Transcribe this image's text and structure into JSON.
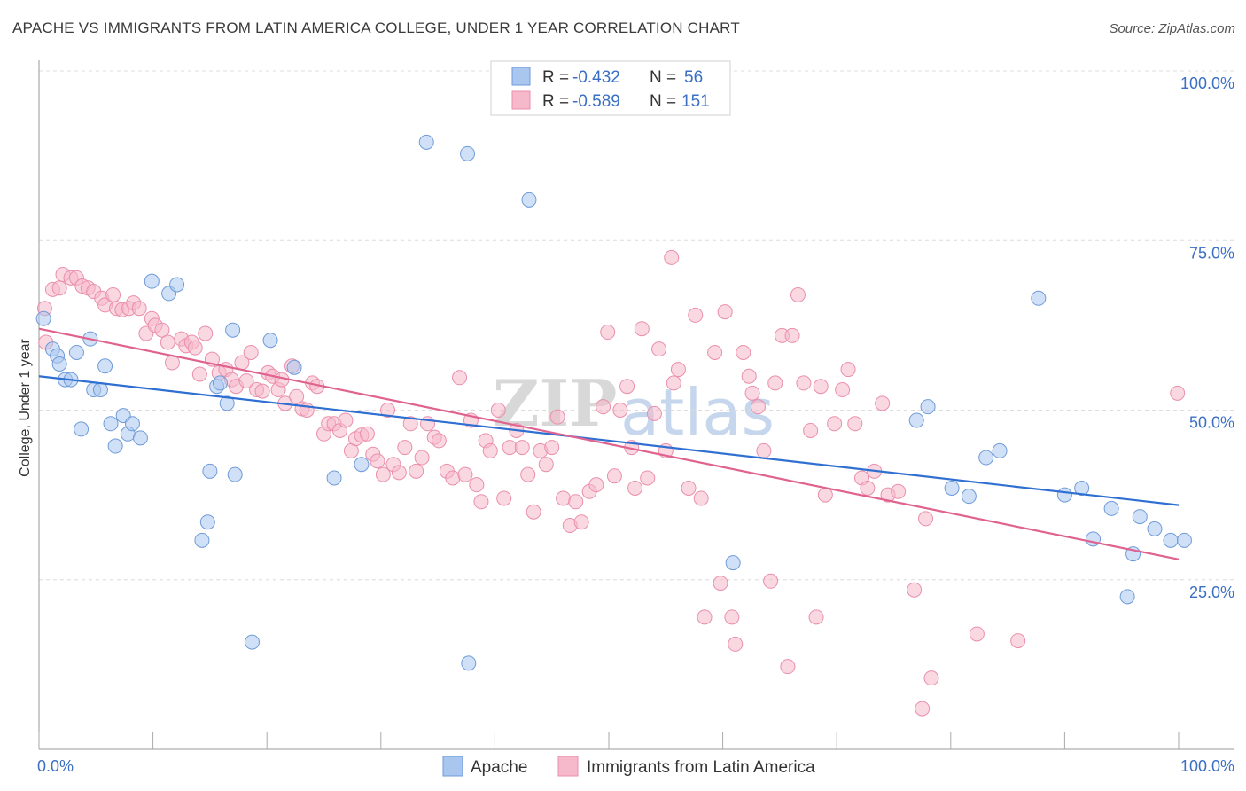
{
  "title": "APACHE VS IMMIGRANTS FROM LATIN AMERICA COLLEGE, UNDER 1 YEAR CORRELATION CHART",
  "source": "Source: ZipAtlas.com",
  "watermark": {
    "zip": "ZIP",
    "atlas": "atlas"
  },
  "legend": {
    "apache": {
      "r_label": "R =",
      "r_value": "-0.432",
      "n_label": "N =",
      "n_value": "56"
    },
    "latin": {
      "r_label": "R =",
      "r_value": "-0.589",
      "n_label": "N =",
      "n_value": "151"
    }
  },
  "bottom_legend": {
    "apache": "Apache",
    "latin": "Immigrants from Latin America"
  },
  "colors": {
    "apache_fill": "#a9c6ee",
    "apache_stroke": "#6f9bd8",
    "apache_line": "#2e6fd1",
    "latin_fill": "#f6b8cb",
    "latin_stroke": "#ea8fac",
    "latin_line": "#e0628f",
    "axis_text": "#3a6fc4"
  },
  "chart_data": {
    "type": "scatter",
    "title": "APACHE VS IMMIGRANTS FROM LATIN AMERICA COLLEGE, UNDER 1 YEAR CORRELATION CHART",
    "xlabel": "",
    "ylabel": "College, Under 1 year",
    "xlim": [
      0,
      100
    ],
    "ylim": [
      0,
      100
    ],
    "x_tick_labels": [
      "0.0%",
      "100.0%"
    ],
    "y_ticks": [
      25,
      50,
      75,
      100
    ],
    "y_tick_labels": [
      "25.0%",
      "50.0%",
      "75.0%",
      "100.0%"
    ],
    "series": [
      {
        "name": "Apache",
        "trend": {
          "x0": 0,
          "y0": 55.0,
          "x1": 100,
          "y1": 36.0
        },
        "points": [
          [
            0.4,
            63.5
          ],
          [
            1.2,
            59
          ],
          [
            1.6,
            58
          ],
          [
            1.8,
            56.8
          ],
          [
            2.3,
            54.5
          ],
          [
            2.8,
            54.5
          ],
          [
            3.3,
            58.5
          ],
          [
            3.7,
            47.2
          ],
          [
            4.5,
            60.5
          ],
          [
            4.8,
            53
          ],
          [
            5.4,
            53
          ],
          [
            5.8,
            56.5
          ],
          [
            6.3,
            48
          ],
          [
            6.7,
            44.7
          ],
          [
            7.4,
            49.2
          ],
          [
            7.8,
            46.5
          ],
          [
            8.2,
            48
          ],
          [
            8.9,
            45.9
          ],
          [
            9.9,
            69
          ],
          [
            11.4,
            67.2
          ],
          [
            12.1,
            68.5
          ],
          [
            14.8,
            33.5
          ],
          [
            14.3,
            30.8
          ],
          [
            15.0,
            41
          ],
          [
            15.6,
            53.5
          ],
          [
            15.9,
            54
          ],
          [
            16.5,
            51
          ],
          [
            17.0,
            61.8
          ],
          [
            17.2,
            40.5
          ],
          [
            18.7,
            15.8
          ],
          [
            20.3,
            60.3
          ],
          [
            22.4,
            56.3
          ],
          [
            25.9,
            40
          ],
          [
            28.3,
            42
          ],
          [
            34.0,
            89.5
          ],
          [
            37.6,
            87.8
          ],
          [
            37.7,
            12.7
          ],
          [
            43.0,
            81
          ],
          [
            60.9,
            27.5
          ],
          [
            77.0,
            48.5
          ],
          [
            78.0,
            50.5
          ],
          [
            80.1,
            38.5
          ],
          [
            81.6,
            37.3
          ],
          [
            83.1,
            43
          ],
          [
            84.3,
            44
          ],
          [
            87.7,
            66.5
          ],
          [
            90.0,
            37.5
          ],
          [
            91.5,
            38.5
          ],
          [
            92.5,
            31
          ],
          [
            94.1,
            35.5
          ],
          [
            95.5,
            22.5
          ],
          [
            96.0,
            28.8
          ],
          [
            96.6,
            34.3
          ],
          [
            97.9,
            32.5
          ],
          [
            100.5,
            30.8
          ],
          [
            99.3,
            30.8
          ]
        ]
      },
      {
        "name": "Immigrants from Latin America",
        "trend": {
          "x0": 0,
          "y0": 62.0,
          "x1": 100,
          "y1": 28.0
        },
        "points": [
          [
            0.5,
            65
          ],
          [
            0.6,
            60
          ],
          [
            1.2,
            67.8
          ],
          [
            1.8,
            68
          ],
          [
            2.1,
            70
          ],
          [
            2.8,
            69.5
          ],
          [
            3.3,
            69.5
          ],
          [
            3.8,
            68.3
          ],
          [
            4.3,
            68
          ],
          [
            4.8,
            67.5
          ],
          [
            5.5,
            66.5
          ],
          [
            5.8,
            65.5
          ],
          [
            6.5,
            67
          ],
          [
            6.8,
            65
          ],
          [
            7.3,
            64.8
          ],
          [
            7.9,
            65
          ],
          [
            8.3,
            65.8
          ],
          [
            8.8,
            65
          ],
          [
            9.4,
            61.3
          ],
          [
            9.9,
            63.5
          ],
          [
            10.2,
            62.5
          ],
          [
            10.8,
            61.8
          ],
          [
            11.3,
            60
          ],
          [
            11.7,
            57
          ],
          [
            12.5,
            60.5
          ],
          [
            12.9,
            59.5
          ],
          [
            13.4,
            60
          ],
          [
            13.7,
            59.2
          ],
          [
            14.1,
            55.3
          ],
          [
            14.6,
            61.3
          ],
          [
            15.2,
            57.5
          ],
          [
            15.8,
            55.5
          ],
          [
            16.4,
            56
          ],
          [
            16.9,
            54.5
          ],
          [
            17.3,
            53.5
          ],
          [
            17.8,
            57
          ],
          [
            18.2,
            54.3
          ],
          [
            18.6,
            58.5
          ],
          [
            19.1,
            53
          ],
          [
            19.6,
            52.8
          ],
          [
            20.1,
            55.5
          ],
          [
            20.5,
            55
          ],
          [
            21.0,
            53
          ],
          [
            21.3,
            54.5
          ],
          [
            21.6,
            51
          ],
          [
            22.2,
            56.5
          ],
          [
            22.6,
            52
          ],
          [
            23.1,
            50.2
          ],
          [
            23.5,
            50
          ],
          [
            24.0,
            54
          ],
          [
            24.4,
            53.5
          ],
          [
            25.0,
            46.5
          ],
          [
            25.4,
            48
          ],
          [
            25.9,
            48
          ],
          [
            26.4,
            47
          ],
          [
            26.9,
            48.5
          ],
          [
            27.4,
            44
          ],
          [
            27.8,
            45.8
          ],
          [
            28.3,
            46.3
          ],
          [
            28.8,
            46.5
          ],
          [
            29.3,
            43.5
          ],
          [
            29.7,
            42.5
          ],
          [
            30.2,
            40.5
          ],
          [
            30.6,
            50
          ],
          [
            31.1,
            42
          ],
          [
            31.6,
            40.8
          ],
          [
            32.1,
            44.5
          ],
          [
            32.6,
            48
          ],
          [
            33.1,
            41
          ],
          [
            33.6,
            43
          ],
          [
            34.1,
            48
          ],
          [
            34.7,
            46
          ],
          [
            35.1,
            45.5
          ],
          [
            35.8,
            41
          ],
          [
            36.3,
            40
          ],
          [
            36.9,
            54.8
          ],
          [
            37.4,
            40.5
          ],
          [
            37.9,
            48.5
          ],
          [
            38.4,
            39
          ],
          [
            38.8,
            36.5
          ],
          [
            39.2,
            45.5
          ],
          [
            39.6,
            44
          ],
          [
            40.3,
            50
          ],
          [
            40.8,
            37
          ],
          [
            41.3,
            44.5
          ],
          [
            41.9,
            47
          ],
          [
            42.4,
            44.5
          ],
          [
            42.9,
            40.5
          ],
          [
            43.4,
            35
          ],
          [
            44.0,
            44
          ],
          [
            44.5,
            42
          ],
          [
            45.0,
            44.5
          ],
          [
            45.5,
            49
          ],
          [
            46.0,
            37
          ],
          [
            46.6,
            33
          ],
          [
            47.1,
            36.5
          ],
          [
            47.6,
            33.5
          ],
          [
            48.3,
            38
          ],
          [
            48.9,
            39
          ],
          [
            49.5,
            50.5
          ],
          [
            49.9,
            61.5
          ],
          [
            50.5,
            40.3
          ],
          [
            51.0,
            50
          ],
          [
            51.6,
            53.5
          ],
          [
            52.0,
            44.5
          ],
          [
            52.3,
            38.5
          ],
          [
            52.9,
            62
          ],
          [
            53.4,
            40
          ],
          [
            54.0,
            49.5
          ],
          [
            54.4,
            59
          ],
          [
            55.0,
            44
          ],
          [
            55.5,
            72.5
          ],
          [
            55.7,
            54
          ],
          [
            56.1,
            56
          ],
          [
            57.0,
            38.5
          ],
          [
            57.6,
            64
          ],
          [
            58.1,
            37
          ],
          [
            58.4,
            19.5
          ],
          [
            59.3,
            58.5
          ],
          [
            59.8,
            24.5
          ],
          [
            60.2,
            64.5
          ],
          [
            60.8,
            19.5
          ],
          [
            61.1,
            15.5
          ],
          [
            61.8,
            58.5
          ],
          [
            62.3,
            55
          ],
          [
            62.6,
            52.5
          ],
          [
            63.1,
            50.5
          ],
          [
            63.6,
            44
          ],
          [
            64.2,
            24.8
          ],
          [
            64.6,
            54
          ],
          [
            65.2,
            61
          ],
          [
            65.7,
            12.2
          ],
          [
            66.1,
            61
          ],
          [
            66.6,
            67
          ],
          [
            67.1,
            54
          ],
          [
            67.7,
            47
          ],
          [
            68.2,
            19.5
          ],
          [
            68.6,
            53.5
          ],
          [
            69.0,
            37.5
          ],
          [
            69.8,
            48
          ],
          [
            70.5,
            53
          ],
          [
            71.0,
            56
          ],
          [
            71.6,
            48
          ],
          [
            72.2,
            40
          ],
          [
            72.7,
            38.5
          ],
          [
            73.3,
            41
          ],
          [
            74.0,
            51
          ],
          [
            74.5,
            37.5
          ],
          [
            75.4,
            38
          ],
          [
            76.8,
            23.5
          ],
          [
            77.5,
            6
          ],
          [
            77.8,
            34
          ],
          [
            78.3,
            10.5
          ],
          [
            82.3,
            17
          ],
          [
            85.9,
            16
          ],
          [
            99.9,
            52.5
          ]
        ]
      }
    ]
  }
}
